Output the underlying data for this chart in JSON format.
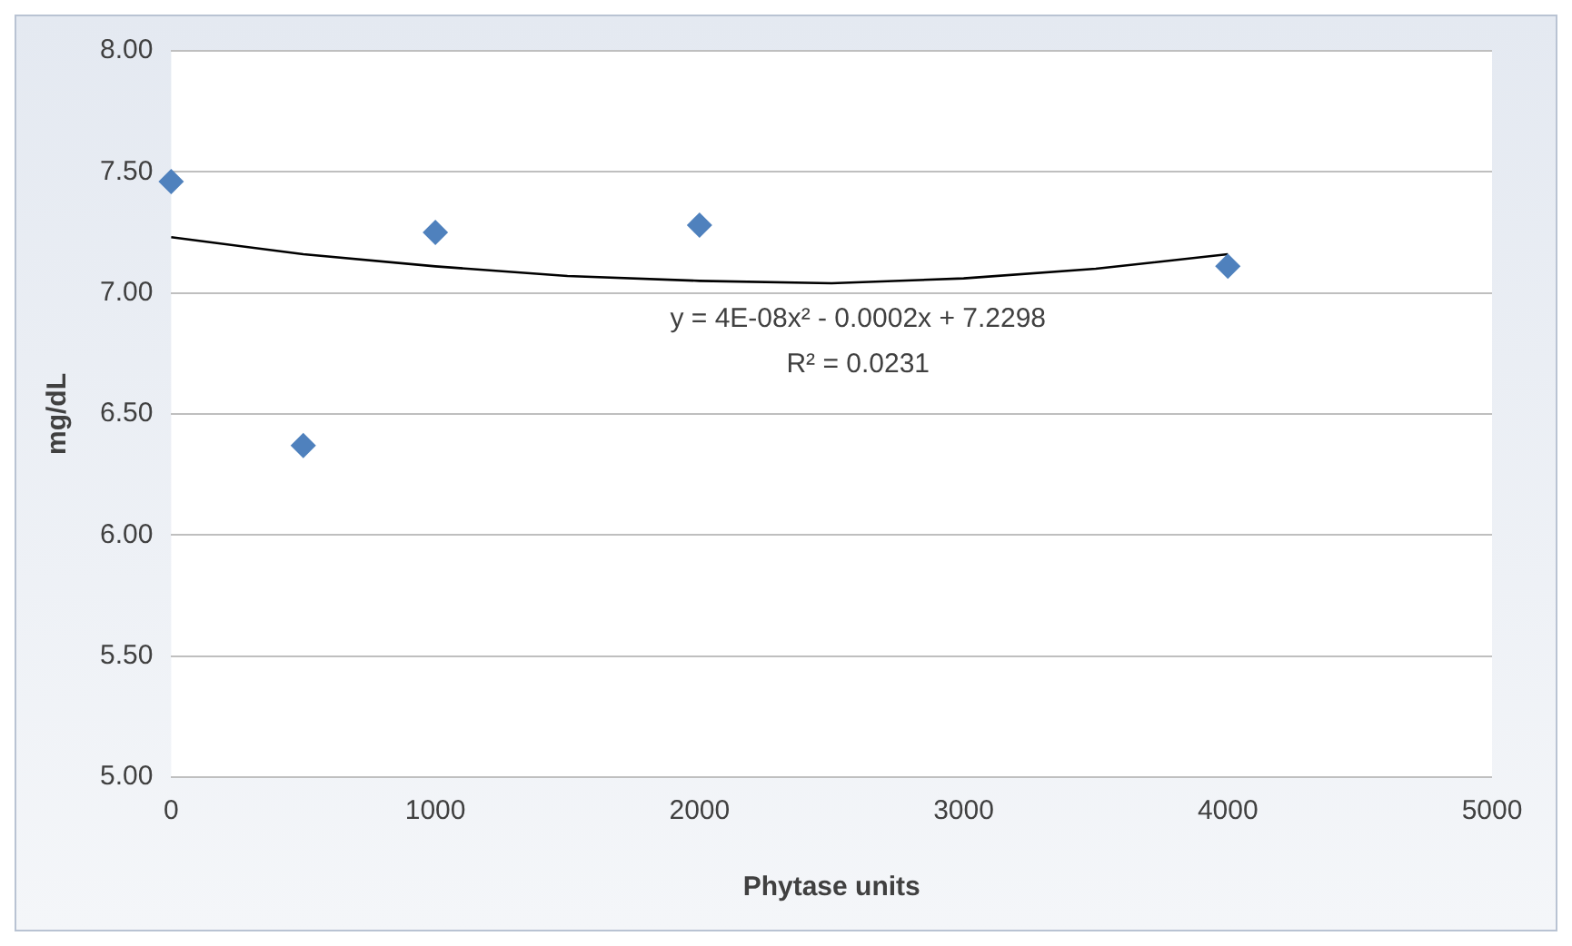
{
  "chart_data": {
    "type": "scatter",
    "xlabel": "Phytase units",
    "ylabel": "mg/dL",
    "series": [
      {
        "type": "scatter",
        "color": "#4f81bd",
        "x": [
          0,
          500,
          1000,
          2000,
          4000
        ],
        "values": [
          7.46,
          6.37,
          7.25,
          7.28,
          7.11
        ],
        "marker": "diamond"
      },
      {
        "type": "line",
        "color": "#000000",
        "x": [
          0,
          500,
          1000,
          1500,
          2000,
          2500,
          3000,
          3500,
          4000
        ],
        "values": [
          7.23,
          7.16,
          7.11,
          7.07,
          7.05,
          7.04,
          7.06,
          7.1,
          7.16
        ],
        "marker": "none",
        "line_style": "solid"
      }
    ],
    "xlim": [
      0,
      5000
    ],
    "xticks": [
      0,
      1000,
      2000,
      3000,
      4000,
      5000
    ],
    "ylim": [
      5,
      8
    ],
    "yticks": [
      {
        "value": 5,
        "label": "5.00"
      },
      {
        "value": 5.5,
        "label": "5.50"
      },
      {
        "value": 6,
        "label": "6.00"
      },
      {
        "value": 6.5,
        "label": "6.50"
      },
      {
        "value": 7,
        "label": "7.00"
      },
      {
        "value": 7.5,
        "label": "7.50"
      },
      {
        "value": 8,
        "label": "8.00"
      }
    ],
    "grid": "y",
    "legend": false,
    "annotations": [
      "y = 4E-08x² - 0.0002x + 7.2298",
      "R² = 0.0231"
    ]
  }
}
